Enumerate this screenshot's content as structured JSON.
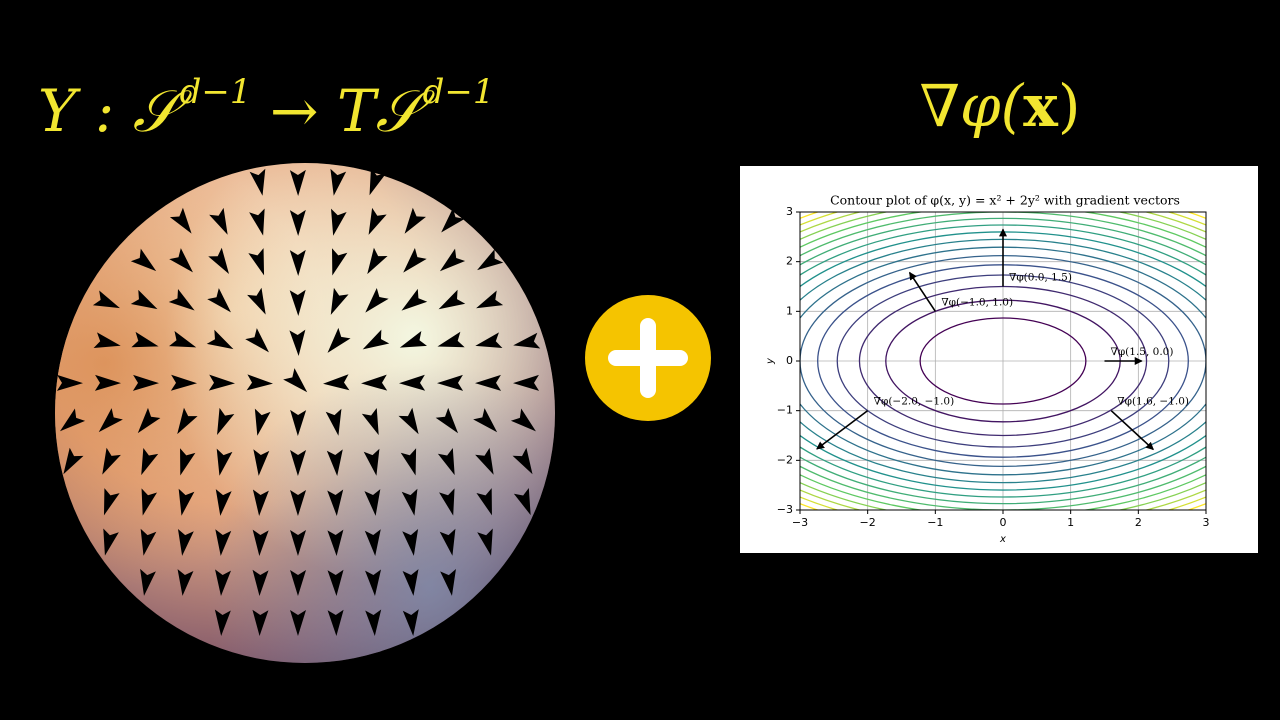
{
  "left_title": {
    "parts": [
      "Y : 𝒮",
      "d−1",
      " → T𝒮",
      "d−1"
    ]
  },
  "right_title": {
    "parts": [
      "∇φ(",
      "x",
      ")"
    ]
  },
  "chart_data": {
    "type": "contour",
    "title": "Contour plot of φ(x, y) = x² + 2y² with gradient vectors",
    "x_label": "x",
    "y_label": "y",
    "xlim": [
      -3,
      3
    ],
    "ylim": [
      -3,
      3
    ],
    "xticks": [
      {
        "value": -3,
        "label": "−3"
      },
      {
        "value": -2,
        "label": "−2"
      },
      {
        "value": -1,
        "label": "−1"
      },
      0,
      1,
      2,
      3
    ],
    "yticks": [
      {
        "value": -3,
        "label": "−3"
      },
      {
        "value": -2,
        "label": "−2"
      },
      {
        "value": -1,
        "label": "−1"
      },
      0,
      1,
      2,
      3
    ],
    "grid": true,
    "colormap": "viridis",
    "levels": [
      1.5,
      3,
      4.5,
      6,
      7.5,
      9,
      10.5,
      12,
      13.5,
      15,
      16.5,
      18,
      19.5,
      21,
      22.5,
      24,
      25.5
    ],
    "arrows": [
      {
        "x": 0,
        "y": 1.5,
        "dx": 0,
        "dy": 1.15,
        "label": "∇φ(0.0, 1.5)"
      },
      {
        "x": -1,
        "y": 1,
        "dx": -0.38,
        "dy": 0.78,
        "label": "∇φ(−1.0, 1.0)"
      },
      {
        "x": 1.5,
        "y": 0,
        "dx": 0.55,
        "dy": 0,
        "label": "∇φ(1.5, 0.0)"
      },
      {
        "x": -2,
        "y": -1,
        "dx": -0.75,
        "dy": -0.77,
        "label": "∇φ(−2.0, −1.0)"
      },
      {
        "x": 1.6,
        "y": -1,
        "dx": 0.62,
        "dy": -0.78,
        "label": "∇φ(1.6, −1.0)"
      }
    ]
  }
}
